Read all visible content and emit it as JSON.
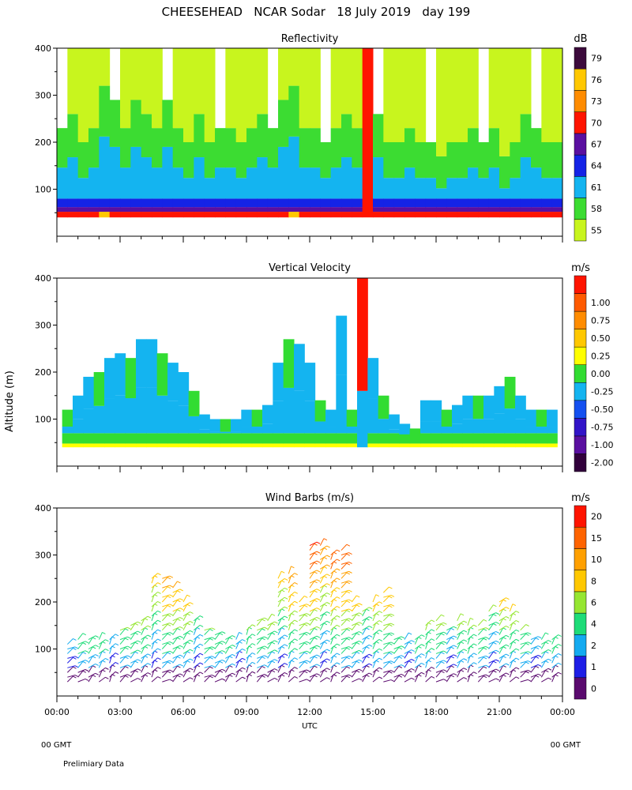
{
  "header": {
    "title": "CHEESEHEAD   NCAR Sodar   18 July 2019   day 199"
  },
  "footer": {
    "left_gmt": "00 GMT",
    "right_gmt": "00 GMT",
    "note": "Prelimiary Data"
  },
  "shared_axes": {
    "ylabel": "Altitude (m)",
    "xlabel": "UTC",
    "x_ticks": [
      "00:00",
      "03:00",
      "06:00",
      "09:00",
      "12:00",
      "15:00",
      "18:00",
      "21:00",
      "00:00"
    ]
  },
  "chart_data": [
    {
      "type": "heatmap",
      "title": "Reflectivity",
      "units": "dB",
      "xlim": [
        0,
        24
      ],
      "ylim": [
        0,
        400
      ],
      "y_ticks": [
        100,
        200,
        300,
        400
      ],
      "x_hours": [
        0,
        0.5,
        1,
        1.5,
        2,
        2.5,
        3,
        3.5,
        4,
        4.5,
        5,
        5.5,
        6,
        6.5,
        7,
        7.5,
        8,
        8.5,
        9,
        9.5,
        10,
        10.5,
        11,
        11.5,
        12,
        12.5,
        13,
        13.5,
        14,
        14.5,
        15,
        15.5,
        16,
        16.5,
        17,
        17.5,
        18,
        18.5,
        19,
        19.5,
        20,
        20.5,
        21,
        21.5,
        22,
        22.5,
        23,
        23.5
      ],
      "profile_top_level": [
        3,
        4,
        2,
        3,
        6,
        5,
        3,
        5,
        4,
        3,
        5,
        3,
        2,
        4,
        2,
        3,
        3,
        2,
        3,
        4,
        3,
        5,
        6,
        3,
        3,
        2,
        3,
        4,
        3,
        9,
        4,
        2,
        2,
        3,
        2,
        2,
        1,
        2,
        2,
        3,
        2,
        3,
        1,
        2,
        4,
        3,
        2,
        2
      ],
      "legend": [
        {
          "label": "55",
          "color": "#c8f51e"
        },
        {
          "label": "58",
          "color": "#3cdc32"
        },
        {
          "label": "61",
          "color": "#14b4f0"
        },
        {
          "label": "64",
          "color": "#1423e6"
        },
        {
          "label": "67",
          "color": "#5a0fa0"
        },
        {
          "label": "70",
          "color": "#ff1400"
        },
        {
          "label": "73",
          "color": "#ff8c00"
        },
        {
          "label": "76",
          "color": "#ffc800"
        },
        {
          "label": "79",
          "color": "#3c0a3c"
        }
      ]
    },
    {
      "type": "heatmap",
      "title": "Vertical Velocity",
      "units": "m/s",
      "xlim": [
        0,
        24
      ],
      "ylim": [
        0,
        400
      ],
      "y_ticks": [
        100,
        200,
        300,
        400
      ],
      "x_hours": [
        0.5,
        1,
        1.5,
        2,
        2.5,
        3,
        3.5,
        4,
        4.5,
        5,
        5.5,
        6,
        6.5,
        7,
        7.5,
        8,
        8.5,
        9,
        9.5,
        10,
        10.5,
        11,
        11.5,
        12,
        12.5,
        13,
        13.5,
        14,
        14.5,
        15,
        15.5,
        16,
        16.5,
        17,
        17.5,
        18,
        18.5,
        19,
        19.5,
        20,
        20.5,
        21,
        21.5,
        22,
        22.5,
        23,
        23.5
      ],
      "data_top_altitude_m": [
        120,
        150,
        190,
        200,
        230,
        240,
        230,
        270,
        270,
        240,
        220,
        200,
        160,
        110,
        100,
        100,
        100,
        120,
        120,
        130,
        220,
        270,
        260,
        220,
        140,
        120,
        320,
        120,
        400,
        230,
        150,
        110,
        90,
        80,
        140,
        140,
        120,
        130,
        150,
        150,
        150,
        170,
        190,
        150,
        120,
        120,
        120
      ],
      "legend": [
        {
          "label": "-2.00",
          "color": "#32003c"
        },
        {
          "label": "-1.00",
          "color": "#5a0fa0"
        },
        {
          "label": "-0.75",
          "color": "#3214c8"
        },
        {
          "label": "-0.50",
          "color": "#1450f0"
        },
        {
          "label": "-0.25",
          "color": "#14b4f0"
        },
        {
          "label": "0.00",
          "color": "#32dc32"
        },
        {
          "label": "0.25",
          "color": "#ffff00"
        },
        {
          "label": "0.50",
          "color": "#ffc800"
        },
        {
          "label": "0.75",
          "color": "#ff8c00"
        },
        {
          "label": "1.00",
          "color": "#ff5a00"
        },
        {
          "label": "",
          "color": "#ff1400"
        }
      ]
    },
    {
      "type": "scatter",
      "title": "Wind Barbs (m/s)",
      "units": "m/s",
      "xlim": [
        0,
        24
      ],
      "ylim": [
        0,
        400
      ],
      "y_ticks": [
        100,
        200,
        300,
        400
      ],
      "x_hours": [
        0.5,
        1,
        1.5,
        2,
        2.5,
        3,
        3.5,
        4,
        4.5,
        5,
        5.5,
        6,
        6.5,
        7,
        7.5,
        8,
        8.5,
        9,
        9.5,
        10,
        10.5,
        11,
        11.5,
        12,
        12.5,
        13,
        13.5,
        14,
        14.5,
        15,
        15.5,
        16,
        16.5,
        17,
        17.5,
        18,
        18.5,
        19,
        19.5,
        20,
        20.5,
        21,
        21.5,
        22,
        22.5,
        23,
        23.5
      ],
      "barb_top_altitude_m": [
        110,
        120,
        120,
        120,
        120,
        140,
        150,
        160,
        250,
        250,
        230,
        200,
        160,
        140,
        130,
        120,
        120,
        140,
        160,
        160,
        250,
        260,
        200,
        320,
        320,
        300,
        310,
        200,
        180,
        200,
        220,
        120,
        120,
        120,
        150,
        160,
        140,
        160,
        150,
        150,
        180,
        200,
        180,
        140,
        120,
        120,
        120
      ],
      "legend": [
        {
          "label": "0",
          "color": "#5a0a6e"
        },
        {
          "label": "1",
          "color": "#1e1ee6"
        },
        {
          "label": "2",
          "color": "#14aaf0"
        },
        {
          "label": "4",
          "color": "#1edc78"
        },
        {
          "label": "6",
          "color": "#96e632"
        },
        {
          "label": "8",
          "color": "#ffc800"
        },
        {
          "label": "10",
          "color": "#ffa000"
        },
        {
          "label": "15",
          "color": "#ff6400"
        },
        {
          "label": "20",
          "color": "#ff1400"
        }
      ]
    }
  ]
}
